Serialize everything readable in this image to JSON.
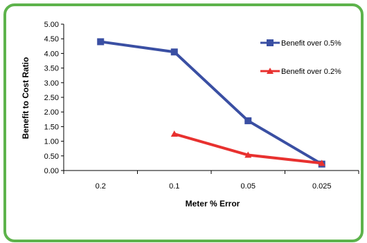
{
  "chart_data": {
    "type": "line",
    "categories": [
      "0.2",
      "0.1",
      "0.05",
      "0.025"
    ],
    "xlabel": "Meter % Error",
    "ylabel": "Benefit to Cost Ratio",
    "ylim": [
      0,
      5
    ],
    "yticks": [
      "0.00",
      "0.50",
      "1.00",
      "1.50",
      "2.00",
      "2.50",
      "3.00",
      "3.50",
      "4.00",
      "4.50",
      "5.00"
    ],
    "grid": false,
    "legend_position": "right",
    "series": [
      {
        "name": "Benefit over 0.5%",
        "color": "#3a4fa3",
        "marker": "square",
        "values": [
          4.4,
          4.05,
          1.7,
          0.22
        ]
      },
      {
        "name": "Benefit over 0.2%",
        "color": "#e8312f",
        "marker": "triangle",
        "values": [
          null,
          1.25,
          0.53,
          0.25
        ]
      }
    ]
  }
}
